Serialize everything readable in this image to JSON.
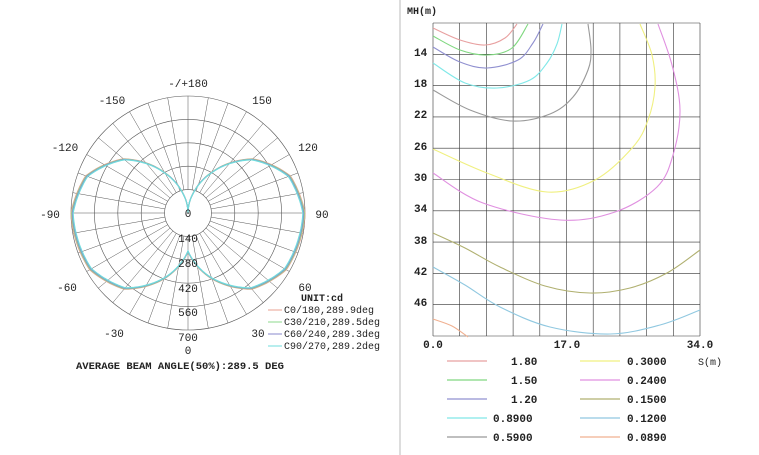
{
  "chart_data": [
    {
      "type": "polar",
      "title": "",
      "unit_label": "UNIT:cd",
      "angle_labels": [
        "-/+180",
        "150",
        "120",
        "90",
        "60",
        "30",
        "0",
        "-30",
        "-60",
        "-90",
        "-120",
        "-150"
      ],
      "radial_ticks": [
        "0",
        "140",
        "280",
        "420",
        "560",
        "700"
      ],
      "rmax": 700,
      "series": [
        {
          "name": "C0/180,289.9deg",
          "color": "#e8a090"
        },
        {
          "name": "C30/210,289.5deg",
          "color": "#8ed88e"
        },
        {
          "name": "C60/240,289.3deg",
          "color": "#8888cc"
        },
        {
          "name": "C90/270,289.2deg",
          "color": "#70dcdc"
        }
      ],
      "intensity_profile": {
        "angles_deg": [
          0,
          20,
          40,
          60,
          90,
          110,
          130,
          150,
          165,
          180
        ],
        "values_cd": [
          231,
          420,
          595,
          679,
          700,
          651,
          504,
          280,
          126,
          0
        ]
      },
      "footer": "AVERAGE BEAM ANGLE(50%):289.5 DEG"
    },
    {
      "type": "contour",
      "ylabel": "MH(m)",
      "xlabel": "S(m)",
      "x_ticks": [
        "0.0",
        "17.0",
        "34.0"
      ],
      "xlim": [
        0,
        34
      ],
      "y_ticks": [
        "14",
        "18",
        "22",
        "26",
        "30",
        "34",
        "38",
        "42",
        "46"
      ],
      "ylim": [
        10,
        50
      ],
      "grid": true,
      "levels": [
        {
          "value": "1.80",
          "color": "#e8a0a0"
        },
        {
          "value": "1.50",
          "color": "#80d880"
        },
        {
          "value": "1.20",
          "color": "#9090d0"
        },
        {
          "value": "0.8900",
          "color": "#80e8e8"
        },
        {
          "value": "0.5900",
          "color": "#999999"
        },
        {
          "value": "0.3000",
          "color": "#f0f080"
        },
        {
          "value": "0.2400",
          "color": "#e090e0"
        },
        {
          "value": "0.1500",
          "color": "#b0b070"
        },
        {
          "value": "0.1200",
          "color": "#90c8e0"
        },
        {
          "value": "0.0890",
          "color": "#f0b090"
        }
      ]
    }
  ]
}
